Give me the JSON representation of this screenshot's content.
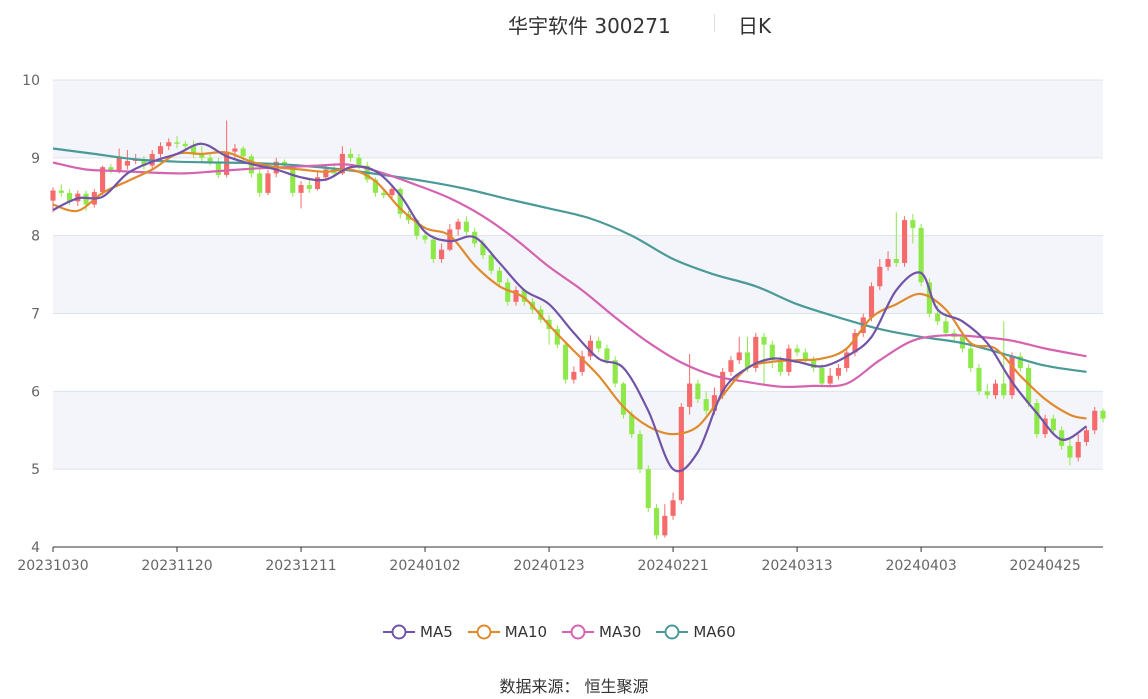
{
  "title": {
    "name": "华宇软件 300271",
    "period": "日K"
  },
  "source": "数据来源： 恒生聚源",
  "colors": {
    "up": "#f56a6a",
    "down": "#8ee84a",
    "MA5": "#7154a8",
    "MA10": "#e08a2e",
    "MA30": "#d563b0",
    "MA60": "#4a9a98",
    "band": "#f4f5fa",
    "grid": "#dde3ec"
  },
  "chart_data": {
    "type": "candlestick",
    "ylim": [
      4,
      10
    ],
    "yticks": [
      4,
      5,
      6,
      7,
      8,
      9,
      10
    ],
    "x_tick_labels": [
      {
        "index": 0,
        "label": "20231030"
      },
      {
        "index": 15,
        "label": "20231120"
      },
      {
        "index": 30,
        "label": "20231211"
      },
      {
        "index": 45,
        "label": "20240102"
      },
      {
        "index": 60,
        "label": "20240123"
      },
      {
        "index": 75,
        "label": "20240221"
      },
      {
        "index": 90,
        "label": "20240313"
      },
      {
        "index": 105,
        "label": "20240403"
      },
      {
        "index": 120,
        "label": "20240425"
      }
    ],
    "candles": [
      [
        8.45,
        8.58,
        8.3,
        8.62
      ],
      [
        8.58,
        8.55,
        8.5,
        8.66
      ],
      [
        8.55,
        8.44,
        8.4,
        8.6
      ],
      [
        8.44,
        8.54,
        8.38,
        8.58
      ],
      [
        8.54,
        8.4,
        8.32,
        8.58
      ],
      [
        8.4,
        8.56,
        8.36,
        8.6
      ],
      [
        8.56,
        8.88,
        8.52,
        8.9
      ],
      [
        8.88,
        8.84,
        8.8,
        8.92
      ],
      [
        8.84,
        9.0,
        8.8,
        9.12
      ],
      [
        8.9,
        8.96,
        8.85,
        9.1
      ],
      [
        8.96,
        8.98,
        8.92,
        9.05
      ],
      [
        8.98,
        8.9,
        8.85,
        9.02
      ],
      [
        8.9,
        9.05,
        8.86,
        9.1
      ],
      [
        9.05,
        9.15,
        9.0,
        9.2
      ],
      [
        9.15,
        9.2,
        9.1,
        9.25
      ],
      [
        9.2,
        9.18,
        9.12,
        9.28
      ],
      [
        9.18,
        9.15,
        9.1,
        9.22
      ],
      [
        9.15,
        9.05,
        9.0,
        9.22
      ],
      [
        9.05,
        9.0,
        8.95,
        9.15
      ],
      [
        9.0,
        8.95,
        8.9,
        9.05
      ],
      [
        8.95,
        8.78,
        8.74,
        9.0
      ],
      [
        8.78,
        9.08,
        8.75,
        9.48
      ],
      [
        9.08,
        9.12,
        9.0,
        9.18
      ],
      [
        9.12,
        9.02,
        8.95,
        9.15
      ],
      [
        9.02,
        8.8,
        8.75,
        9.05
      ],
      [
        8.8,
        8.55,
        8.5,
        8.85
      ],
      [
        8.55,
        8.8,
        8.52,
        8.85
      ],
      [
        8.8,
        8.95,
        8.75,
        9.0
      ],
      [
        8.95,
        8.9,
        8.85,
        8.98
      ],
      [
        8.9,
        8.55,
        8.5,
        8.92
      ],
      [
        8.55,
        8.65,
        8.35,
        8.7
      ],
      [
        8.65,
        8.6,
        8.55,
        8.72
      ],
      [
        8.6,
        8.75,
        8.58,
        8.82
      ],
      [
        8.75,
        8.85,
        8.7,
        8.9
      ],
      [
        8.85,
        8.8,
        8.75,
        8.92
      ],
      [
        8.8,
        9.05,
        8.78,
        9.15
      ],
      [
        9.05,
        9.0,
        8.95,
        9.12
      ],
      [
        9.0,
        8.9,
        8.85,
        9.05
      ],
      [
        8.9,
        8.72,
        8.68,
        8.95
      ],
      [
        8.72,
        8.55,
        8.5,
        8.75
      ],
      [
        8.55,
        8.52,
        8.48,
        8.6
      ],
      [
        8.52,
        8.6,
        8.48,
        8.65
      ],
      [
        8.6,
        8.28,
        8.22,
        8.62
      ],
      [
        8.28,
        8.2,
        8.15,
        8.32
      ],
      [
        8.2,
        8.0,
        7.95,
        8.22
      ],
      [
        8.0,
        7.95,
        7.9,
        8.05
      ],
      [
        7.95,
        7.7,
        7.65,
        8.0
      ],
      [
        7.7,
        7.82,
        7.65,
        7.9
      ],
      [
        7.82,
        8.08,
        7.8,
        8.15
      ],
      [
        8.08,
        8.18,
        8.0,
        8.22
      ],
      [
        8.18,
        8.05,
        8.0,
        8.25
      ],
      [
        8.05,
        7.9,
        7.85,
        8.1
      ],
      [
        7.9,
        7.75,
        7.7,
        7.95
      ],
      [
        7.75,
        7.55,
        7.5,
        7.8
      ],
      [
        7.55,
        7.4,
        7.35,
        7.6
      ],
      [
        7.4,
        7.15,
        7.1,
        7.45
      ],
      [
        7.15,
        7.3,
        7.1,
        7.35
      ],
      [
        7.3,
        7.15,
        7.1,
        7.32
      ],
      [
        7.15,
        7.05,
        7.0,
        7.2
      ],
      [
        7.05,
        6.92,
        6.88,
        7.1
      ],
      [
        6.92,
        6.8,
        6.6,
        6.98
      ],
      [
        6.8,
        6.6,
        6.55,
        6.85
      ],
      [
        6.6,
        6.15,
        6.1,
        6.65
      ],
      [
        6.15,
        6.25,
        6.1,
        6.32
      ],
      [
        6.25,
        6.45,
        6.2,
        6.52
      ],
      [
        6.45,
        6.65,
        6.4,
        6.72
      ],
      [
        6.65,
        6.55,
        6.5,
        6.7
      ],
      [
        6.55,
        6.4,
        6.35,
        6.6
      ],
      [
        6.4,
        6.1,
        6.05,
        6.45
      ],
      [
        6.1,
        5.7,
        5.65,
        6.12
      ],
      [
        5.7,
        5.45,
        5.4,
        5.75
      ],
      [
        5.45,
        5.0,
        4.95,
        5.5
      ],
      [
        5.0,
        4.5,
        4.45,
        5.05
      ],
      [
        4.5,
        4.15,
        4.1,
        4.55
      ],
      [
        4.15,
        4.4,
        4.12,
        4.55
      ],
      [
        4.4,
        4.6,
        4.35,
        4.7
      ],
      [
        4.6,
        5.8,
        4.55,
        5.85
      ],
      [
        5.8,
        6.1,
        5.7,
        6.48
      ],
      [
        6.1,
        5.9,
        5.85,
        6.15
      ],
      [
        5.9,
        5.75,
        5.7,
        6.0
      ],
      [
        5.75,
        5.95,
        5.7,
        6.05
      ],
      [
        5.95,
        6.25,
        5.9,
        6.3
      ],
      [
        6.25,
        6.4,
        6.2,
        6.45
      ],
      [
        6.4,
        6.5,
        6.35,
        6.7
      ],
      [
        6.5,
        6.3,
        6.25,
        6.7
      ],
      [
        6.3,
        6.7,
        6.25,
        6.75
      ],
      [
        6.7,
        6.6,
        6.1,
        6.75
      ],
      [
        6.6,
        6.4,
        6.3,
        6.65
      ],
      [
        6.4,
        6.25,
        6.2,
        6.45
      ],
      [
        6.25,
        6.55,
        6.2,
        6.6
      ],
      [
        6.55,
        6.5,
        6.45,
        6.6
      ],
      [
        6.5,
        6.4,
        6.35,
        6.55
      ],
      [
        6.4,
        6.3,
        6.25,
        6.45
      ],
      [
        6.3,
        6.1,
        6.05,
        6.35
      ],
      [
        6.1,
        6.2,
        6.05,
        6.3
      ],
      [
        6.2,
        6.3,
        6.15,
        6.35
      ],
      [
        6.3,
        6.5,
        6.25,
        6.55
      ],
      [
        6.5,
        6.75,
        6.45,
        6.8
      ],
      [
        6.75,
        6.95,
        6.7,
        7.0
      ],
      [
        6.95,
        7.35,
        6.9,
        7.4
      ],
      [
        7.35,
        7.6,
        7.3,
        7.7
      ],
      [
        7.6,
        7.7,
        7.55,
        7.8
      ],
      [
        7.7,
        7.65,
        7.6,
        8.3
      ],
      [
        7.65,
        8.2,
        7.6,
        8.25
      ],
      [
        8.2,
        8.1,
        7.9,
        8.28
      ],
      [
        8.1,
        7.4,
        7.35,
        8.15
      ],
      [
        7.4,
        7.0,
        6.95,
        7.45
      ],
      [
        7.0,
        6.9,
        6.85,
        7.1
      ],
      [
        6.9,
        6.75,
        6.7,
        7.0
      ],
      [
        6.75,
        6.7,
        6.65,
        6.8
      ],
      [
        6.7,
        6.55,
        6.5,
        6.75
      ],
      [
        6.55,
        6.3,
        6.25,
        6.6
      ],
      [
        6.3,
        6.0,
        5.95,
        6.35
      ],
      [
        6.0,
        5.95,
        5.9,
        6.1
      ],
      [
        5.95,
        6.1,
        5.9,
        6.15
      ],
      [
        6.1,
        5.95,
        5.9,
        6.9
      ],
      [
        5.95,
        6.45,
        5.9,
        6.5
      ],
      [
        6.45,
        6.3,
        6.25,
        6.5
      ],
      [
        6.3,
        5.85,
        5.8,
        6.35
      ],
      [
        5.85,
        5.45,
        5.4,
        5.9
      ],
      [
        5.45,
        5.65,
        5.4,
        5.7
      ],
      [
        5.65,
        5.5,
        5.45,
        5.7
      ],
      [
        5.5,
        5.3,
        5.25,
        5.55
      ],
      [
        5.3,
        5.15,
        5.05,
        5.4
      ],
      [
        5.15,
        5.35,
        5.1,
        5.45
      ],
      [
        5.35,
        5.5,
        5.3,
        5.55
      ],
      [
        5.5,
        5.75,
        5.45,
        5.8
      ],
      [
        5.75,
        5.65,
        5.6,
        5.78
      ]
    ],
    "ma5": [
      [
        0,
        8.33
      ],
      [
        3,
        8.48
      ],
      [
        6,
        8.5
      ],
      [
        9,
        8.8
      ],
      [
        12,
        8.95
      ],
      [
        15,
        9.05
      ],
      [
        18,
        9.18
      ],
      [
        21,
        9.02
      ],
      [
        24,
        8.92
      ],
      [
        27,
        8.85
      ],
      [
        30,
        8.75
      ],
      [
        33,
        8.72
      ],
      [
        36,
        8.88
      ],
      [
        39,
        8.83
      ],
      [
        42,
        8.52
      ],
      [
        45,
        8.05
      ],
      [
        48,
        7.93
      ],
      [
        51,
        7.98
      ],
      [
        54,
        7.65
      ],
      [
        57,
        7.3
      ],
      [
        60,
        7.12
      ],
      [
        63,
        6.75
      ],
      [
        66,
        6.42
      ],
      [
        69,
        6.3
      ],
      [
        72,
        5.75
      ],
      [
        75,
        5.0
      ],
      [
        78,
        5.22
      ],
      [
        81,
        6.0
      ],
      [
        84,
        6.3
      ],
      [
        87,
        6.42
      ],
      [
        90,
        6.38
      ],
      [
        93,
        6.32
      ],
      [
        96,
        6.45
      ],
      [
        99,
        6.7
      ],
      [
        102,
        7.3
      ],
      [
        105,
        7.52
      ],
      [
        107,
        7.05
      ],
      [
        110,
        6.9
      ],
      [
        113,
        6.62
      ],
      [
        116,
        6.12
      ],
      [
        119,
        5.72
      ],
      [
        122,
        5.38
      ],
      [
        125,
        5.55
      ]
    ],
    "ma10": [
      [
        0,
        8.4
      ],
      [
        3,
        8.32
      ],
      [
        6,
        8.55
      ],
      [
        9,
        8.7
      ],
      [
        12,
        8.85
      ],
      [
        15,
        9.05
      ],
      [
        18,
        9.05
      ],
      [
        21,
        9.07
      ],
      [
        24,
        8.95
      ],
      [
        27,
        8.88
      ],
      [
        30,
        8.85
      ],
      [
        33,
        8.82
      ],
      [
        36,
        8.85
      ],
      [
        39,
        8.7
      ],
      [
        42,
        8.35
      ],
      [
        45,
        8.1
      ],
      [
        48,
        8.0
      ],
      [
        51,
        7.62
      ],
      [
        54,
        7.35
      ],
      [
        57,
        7.2
      ],
      [
        60,
        6.85
      ],
      [
        63,
        6.52
      ],
      [
        66,
        6.2
      ],
      [
        69,
        5.8
      ],
      [
        72,
        5.55
      ],
      [
        75,
        5.45
      ],
      [
        78,
        5.55
      ],
      [
        81,
        5.95
      ],
      [
        84,
        6.3
      ],
      [
        87,
        6.38
      ],
      [
        90,
        6.4
      ],
      [
        93,
        6.42
      ],
      [
        96,
        6.55
      ],
      [
        99,
        6.95
      ],
      [
        102,
        7.12
      ],
      [
        105,
        7.25
      ],
      [
        108,
        7.05
      ],
      [
        111,
        6.62
      ],
      [
        114,
        6.55
      ],
      [
        117,
        6.2
      ],
      [
        120,
        5.9
      ],
      [
        123,
        5.7
      ],
      [
        125,
        5.65
      ]
    ],
    "ma30": [
      [
        0,
        8.94
      ],
      [
        4,
        8.85
      ],
      [
        8,
        8.83
      ],
      [
        12,
        8.81
      ],
      [
        16,
        8.8
      ],
      [
        20,
        8.83
      ],
      [
        24,
        8.86
      ],
      [
        28,
        8.88
      ],
      [
        32,
        8.9
      ],
      [
        36,
        8.91
      ],
      [
        40,
        8.8
      ],
      [
        44,
        8.65
      ],
      [
        48,
        8.48
      ],
      [
        52,
        8.25
      ],
      [
        56,
        7.95
      ],
      [
        60,
        7.6
      ],
      [
        64,
        7.3
      ],
      [
        68,
        6.95
      ],
      [
        72,
        6.63
      ],
      [
        76,
        6.37
      ],
      [
        80,
        6.2
      ],
      [
        84,
        6.12
      ],
      [
        88,
        6.06
      ],
      [
        92,
        6.07
      ],
      [
        96,
        6.1
      ],
      [
        100,
        6.4
      ],
      [
        104,
        6.65
      ],
      [
        108,
        6.72
      ],
      [
        112,
        6.7
      ],
      [
        116,
        6.65
      ],
      [
        120,
        6.55
      ],
      [
        125,
        6.45
      ]
    ],
    "ma60": [
      [
        0,
        9.12
      ],
      [
        5,
        9.05
      ],
      [
        10,
        8.98
      ],
      [
        15,
        8.95
      ],
      [
        20,
        8.94
      ],
      [
        25,
        8.93
      ],
      [
        30,
        8.9
      ],
      [
        35,
        8.85
      ],
      [
        40,
        8.78
      ],
      [
        45,
        8.7
      ],
      [
        50,
        8.6
      ],
      [
        55,
        8.47
      ],
      [
        60,
        8.35
      ],
      [
        65,
        8.22
      ],
      [
        70,
        8.0
      ],
      [
        75,
        7.7
      ],
      [
        80,
        7.5
      ],
      [
        85,
        7.35
      ],
      [
        90,
        7.12
      ],
      [
        95,
        6.95
      ],
      [
        100,
        6.8
      ],
      [
        105,
        6.7
      ],
      [
        110,
        6.62
      ],
      [
        115,
        6.48
      ],
      [
        120,
        6.33
      ],
      [
        125,
        6.25
      ]
    ]
  },
  "legend": [
    {
      "key": "MA5",
      "label": "MA5"
    },
    {
      "key": "MA10",
      "label": "MA10"
    },
    {
      "key": "MA30",
      "label": "MA30"
    },
    {
      "key": "MA60",
      "label": "MA60"
    }
  ]
}
